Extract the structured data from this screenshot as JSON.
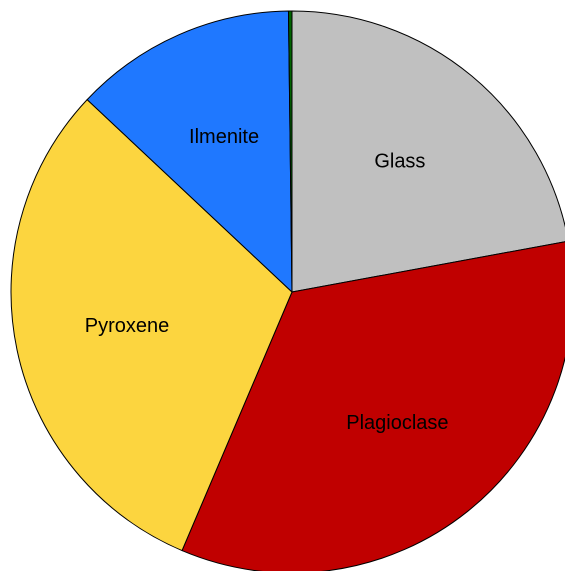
{
  "chart_data": {
    "type": "pie",
    "categories": [
      "Glass",
      "Plagioclase",
      "Pyroxene",
      "Ilmenite",
      null
    ],
    "values": [
      22.1,
      34.3,
      30.6,
      12.8,
      0.2
    ],
    "colors": [
      "#c0c0c0",
      "#c00000",
      "#fcd53f",
      "#1f78ff",
      "#006400"
    ]
  }
}
